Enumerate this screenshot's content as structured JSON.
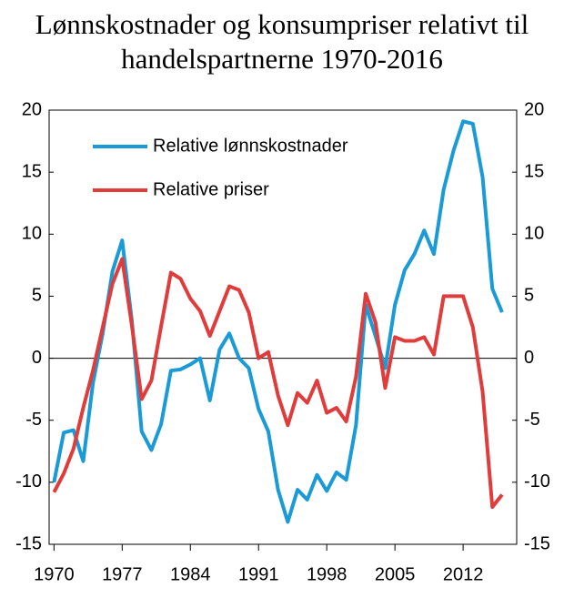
{
  "chart_data": {
    "type": "line",
    "title": "Lønnskostnader og konsumpriser relativt til handelspartnerne 1970-2016",
    "x": [
      1970,
      1971,
      1972,
      1973,
      1974,
      1975,
      1976,
      1977,
      1978,
      1979,
      1980,
      1981,
      1982,
      1983,
      1984,
      1985,
      1986,
      1987,
      1988,
      1989,
      1990,
      1991,
      1992,
      1993,
      1994,
      1995,
      1996,
      1997,
      1998,
      1999,
      2000,
      2001,
      2002,
      2003,
      2004,
      2005,
      2006,
      2007,
      2008,
      2009,
      2010,
      2011,
      2012,
      2013,
      2014,
      2015,
      2016
    ],
    "series": [
      {
        "name": "Relative lønnskostnader",
        "color": "#1a9ad6",
        "values": [
          -10,
          -6,
          -5.8,
          -8.3,
          -2,
          2,
          7,
          9.5,
          3,
          -5.9,
          -7.4,
          -5.3,
          -1,
          -0.9,
          -0.5,
          0,
          -3.4,
          0.7,
          2,
          0,
          -0.8,
          -4.1,
          -5.9,
          -10.6,
          -13.2,
          -10.6,
          -11.4,
          -9.4,
          -10.7,
          -9.2,
          -9.8,
          -5.4,
          4.3,
          1.8,
          -0.8,
          4.3,
          7.1,
          8.4,
          10.3,
          8.4,
          13.6,
          16.7,
          19.1,
          18.9,
          14.6,
          5.6,
          3.7
        ]
      },
      {
        "name": "Relative priser",
        "color": "#e03c3c",
        "values": [
          -10.8,
          -9.3,
          -7.3,
          -4,
          -1,
          2.5,
          6,
          8,
          2.6,
          -3.3,
          -1.8,
          2.6,
          6.9,
          6.4,
          4.8,
          3.8,
          1.8,
          3.8,
          5.8,
          5.5,
          3.7,
          0,
          0.5,
          -3,
          -5.4,
          -2.8,
          -3.6,
          -1.8,
          -4.4,
          -4,
          -5.1,
          -1.5,
          5.2,
          2.9,
          -2.4,
          1.7,
          1.4,
          1.4,
          1.7,
          0.3,
          5,
          5,
          5,
          2.5,
          -2.7,
          -12,
          -11
        ]
      }
    ],
    "xlim": [
      1969.5,
      2017.5
    ],
    "xticks": [
      1970,
      1977,
      1984,
      1991,
      1998,
      2005,
      2012
    ],
    "ylim": [
      -15,
      20
    ],
    "yticks": [
      -15,
      -10,
      -5,
      0,
      5,
      10,
      15,
      20
    ],
    "y2lim": [
      -15,
      20
    ],
    "y2ticks": [
      -15,
      -10,
      -5,
      0,
      5,
      10,
      15,
      20
    ],
    "legend": "upper-left"
  }
}
